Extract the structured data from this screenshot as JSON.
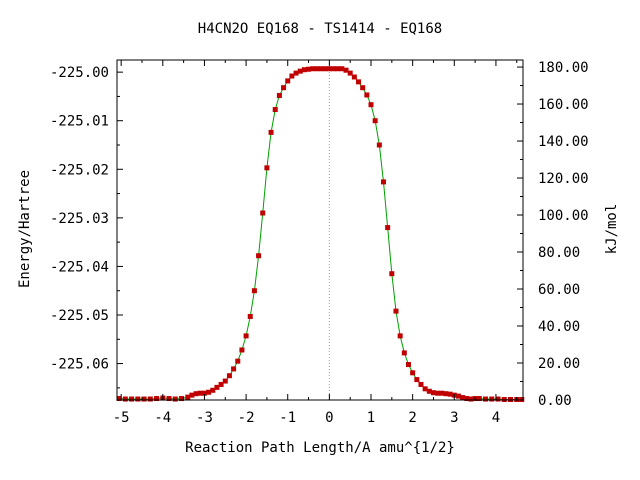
{
  "chart_data": {
    "type": "line",
    "title": "H4CN2O   EQ168 - TS1414 - EQ168",
    "xlabel": "Reaction Path Length/A amu^{1/2}",
    "ylabel": "Energy/Hartree",
    "y2label": "kJ/mol",
    "xlim": [
      -5.1,
      4.65
    ],
    "ylim": [
      -225.0675,
      -224.9975
    ],
    "y2lim": [
      0,
      183.8
    ],
    "x_ticks": [
      "-5",
      "-4",
      "-3",
      "-2",
      "-1",
      "0",
      "1",
      "2",
      "3",
      "4"
    ],
    "y_ticks": [
      "-225.00",
      "-225.01",
      "-225.02",
      "-225.03",
      "-225.04",
      "-225.05",
      "-225.06"
    ],
    "y2_ticks": [
      "0.00",
      "20.00",
      "40.00",
      "60.00",
      "80.00",
      "100.00",
      "120.00",
      "140.00",
      "160.00",
      "180.00"
    ],
    "ts_x": 0,
    "colors": {
      "curve": "#00a000",
      "points": "#c00000",
      "ts_line": "#a0a0a0"
    },
    "series": [
      {
        "x": [
          -5.05,
          -4.9,
          -4.75,
          -4.6,
          -4.45,
          -4.3,
          -4.15,
          -4.0,
          -3.85,
          -3.7,
          -3.55,
          -3.4,
          -3.3,
          -3.2,
          -3.1,
          -3.0,
          -2.9,
          -2.8,
          -2.7,
          -2.6,
          -2.5,
          -2.4,
          -2.3,
          -2.2,
          -2.1,
          -2.0,
          -1.9,
          -1.8,
          -1.7,
          -1.6,
          -1.5,
          -1.4,
          -1.3,
          -1.2,
          -1.1,
          -1.0,
          -0.9,
          -0.8,
          -0.7,
          -0.6,
          -0.5,
          -0.4,
          -0.3,
          -0.2,
          -0.1,
          0.0,
          0.1,
          0.2,
          0.3,
          0.4,
          0.5,
          0.6,
          0.7,
          0.8,
          0.9,
          1.0,
          1.1,
          1.2,
          1.3,
          1.4,
          1.5,
          1.6,
          1.7,
          1.8,
          1.9,
          2.0,
          2.1,
          2.2,
          2.3,
          2.4,
          2.5,
          2.6,
          2.7,
          2.8,
          2.9,
          3.0,
          3.1,
          3.2,
          3.3,
          3.4,
          3.5,
          3.6,
          3.75,
          3.9,
          4.05,
          4.2,
          4.35,
          4.5,
          4.62
        ],
        "y": [
          -225.0672,
          -225.0673,
          -225.0673,
          -225.0673,
          -225.0673,
          -225.0673,
          -225.0672,
          -225.0671,
          -225.0672,
          -225.0673,
          -225.0672,
          -225.0669,
          -225.0665,
          -225.0662,
          -225.0661,
          -225.0661,
          -225.0659,
          -225.0655,
          -225.0649,
          -225.0643,
          -225.0636,
          -225.0625,
          -225.0611,
          -225.0595,
          -225.0572,
          -225.0543,
          -225.0503,
          -225.045,
          -225.0378,
          -225.029,
          -225.0197,
          -225.0124,
          -225.0077,
          -225.0048,
          -225.0032,
          -225.0018,
          -225.0008,
          -225.0002,
          -224.9998,
          -224.9995,
          -224.9994,
          -224.9993,
          -224.9993,
          -224.9993,
          -224.9993,
          -224.9993,
          -224.9993,
          -224.9993,
          -224.9993,
          -224.9996,
          -225.0002,
          -225.001,
          -225.002,
          -225.0032,
          -225.0047,
          -225.0067,
          -225.01,
          -225.015,
          -225.0226,
          -225.032,
          -225.0415,
          -225.0492,
          -225.0543,
          -225.0578,
          -225.0602,
          -225.0619,
          -225.0633,
          -225.0643,
          -225.0652,
          -225.0657,
          -225.066,
          -225.0661,
          -225.0661,
          -225.0662,
          -225.0663,
          -225.0665,
          -225.0667,
          -225.067,
          -225.0672,
          -225.0673,
          -225.0672,
          -225.0672,
          -225.0673,
          -225.0673,
          -225.0673,
          -225.0674,
          -225.0674,
          -225.0674,
          -225.0674
        ]
      }
    ]
  }
}
